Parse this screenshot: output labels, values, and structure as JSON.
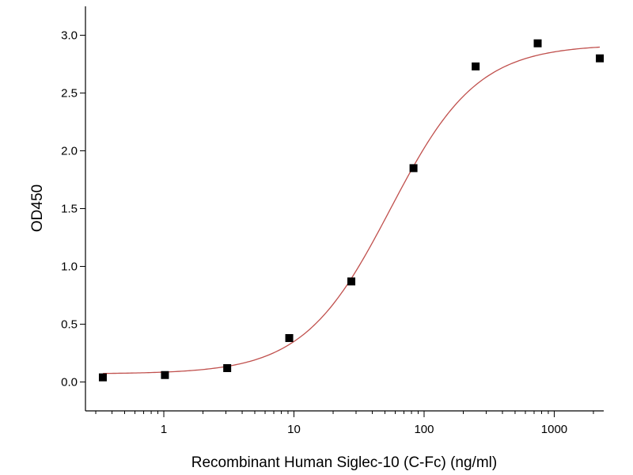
{
  "chart_data": {
    "type": "scatter",
    "title": "",
    "xlabel": "Recombinant Human Siglec-10 (C-Fc) (ng/ml)",
    "ylabel": "OD450",
    "xscale": "log",
    "xlim": [
      0.25,
      2400
    ],
    "ylim": [
      -0.25,
      3.25
    ],
    "xticks": [
      1,
      10,
      100,
      1000
    ],
    "xtick_labels": [
      "1",
      "10",
      "100",
      "1000"
    ],
    "yticks": [
      0.0,
      0.5,
      1.0,
      1.5,
      2.0,
      2.5,
      3.0
    ],
    "ytick_labels": [
      "0.0",
      "0.5",
      "1.0",
      "1.5",
      "2.0",
      "2.5",
      "3.0"
    ],
    "grid": false,
    "legend": "none",
    "series": [
      {
        "kind": "points",
        "marker": "square",
        "color": "#000000",
        "x": [
          0.34,
          1.02,
          3.07,
          9.2,
          27.6,
          82.9,
          249,
          746,
          2240
        ],
        "y": [
          0.04,
          0.06,
          0.12,
          0.38,
          0.87,
          1.85,
          2.73,
          2.93,
          2.8
        ]
      },
      {
        "kind": "fit-curve",
        "model": "4PL",
        "color": "#c0504d",
        "bottom": 0.07,
        "top": 2.92,
        "ec50": 55,
        "hill": 1.3
      }
    ]
  }
}
